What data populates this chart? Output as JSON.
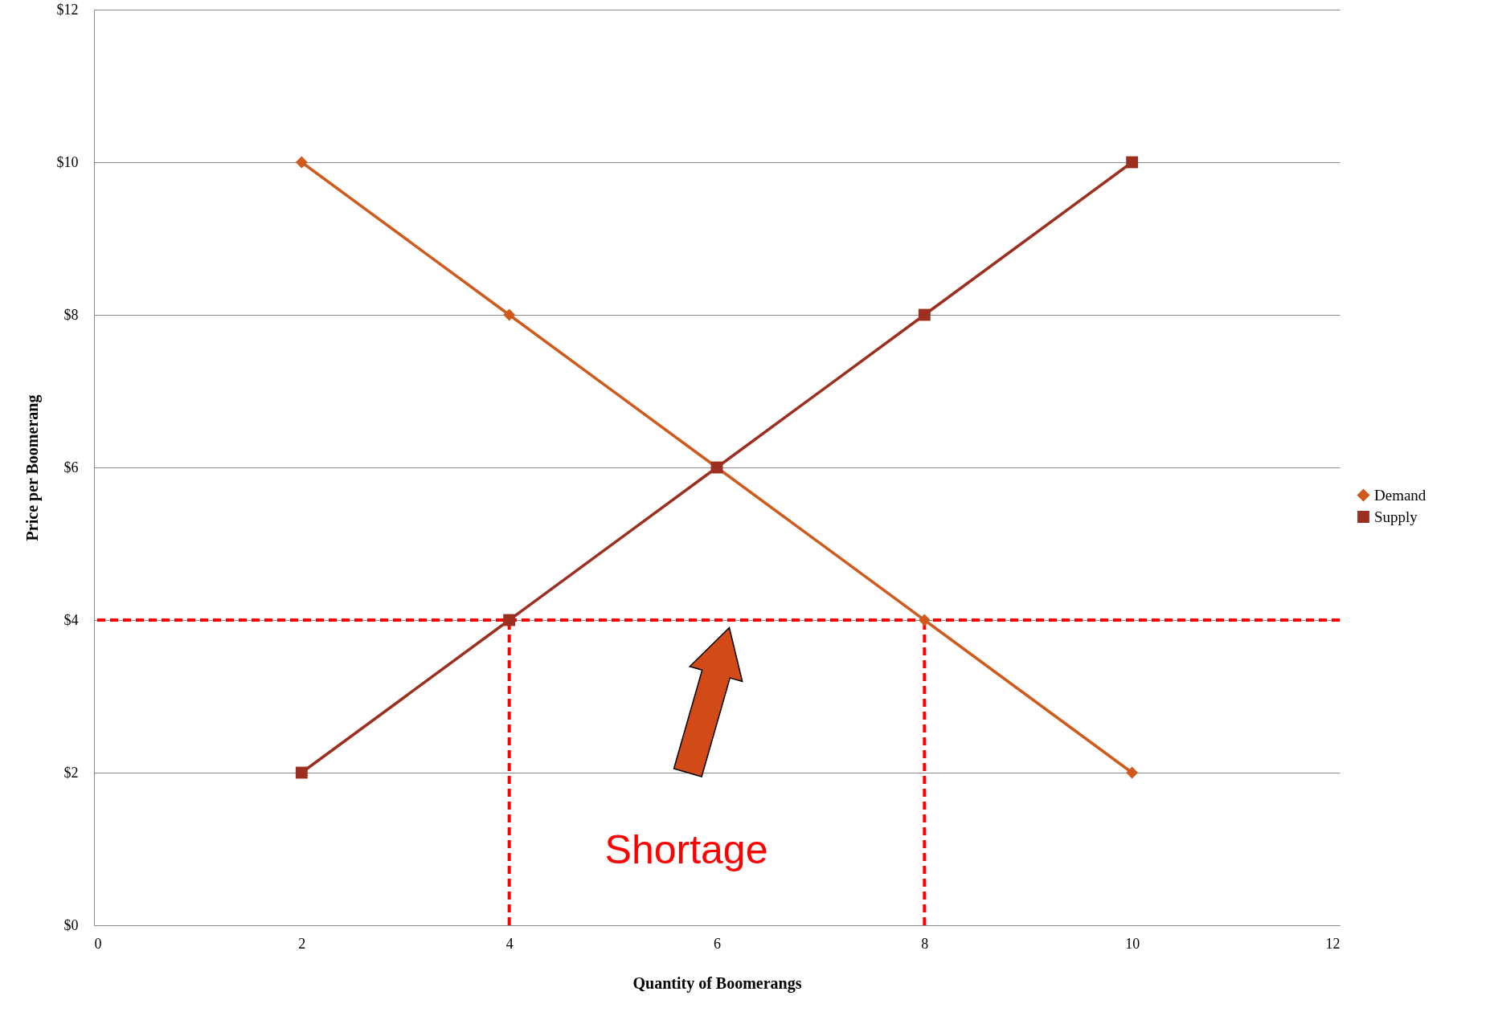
{
  "chart_data": {
    "type": "line",
    "xlabel": "Quantity of Boomerangs",
    "ylabel": "Price per Boomerang",
    "xlim": [
      0,
      12
    ],
    "xticks": [
      0,
      2,
      4,
      6,
      8,
      10,
      12
    ],
    "ylim": [
      0,
      12
    ],
    "yticks": [
      {
        "value": 0,
        "label": "$0"
      },
      {
        "value": 2,
        "label": "$2"
      },
      {
        "value": 4,
        "label": "$4"
      },
      {
        "value": 6,
        "label": "$6"
      },
      {
        "value": 8,
        "label": "$8"
      },
      {
        "value": 10,
        "label": "$10"
      },
      {
        "value": 12,
        "label": "$12"
      }
    ],
    "grid": "y",
    "legend": "right",
    "series": [
      {
        "name": "Demand",
        "color": "#d05a1c",
        "marker": "diamond",
        "x": [
          2,
          4,
          6,
          8,
          10
        ],
        "values": [
          10,
          8,
          6,
          4,
          2
        ]
      },
      {
        "name": "Supply",
        "color": "#9c2f20",
        "marker": "square",
        "x": [
          2,
          4,
          6,
          8,
          10
        ],
        "values": [
          2,
          4,
          6,
          8,
          10
        ]
      }
    ],
    "ref_lines": [
      {
        "axis": "y",
        "value": 4,
        "color": "#ff0000",
        "line_style": "dashed"
      },
      {
        "axis": "x",
        "value": 4,
        "color": "#ff0000",
        "line_style": "dashed"
      },
      {
        "axis": "x",
        "value": 8,
        "color": "#ff0000",
        "line_style": "dashed"
      }
    ],
    "annotations": [
      "Shortage"
    ]
  }
}
